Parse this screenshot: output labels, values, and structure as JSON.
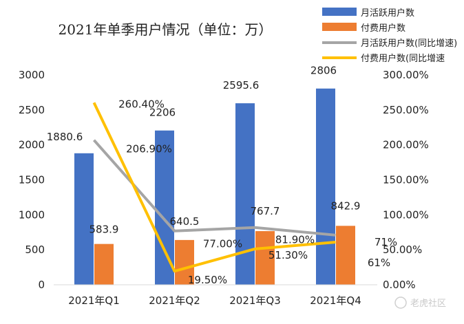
{
  "chart_data": {
    "type": "bar",
    "title": "2021年单季用户情况（单位：万）",
    "categories": [
      "2021年Q1",
      "2021年Q2",
      "2021年Q3",
      "2021年Q4"
    ],
    "series": [
      {
        "name": "月活跃用户数",
        "type": "bar",
        "axis": "left",
        "color": "#4472C4",
        "values": [
          1880.6,
          2206,
          2595.6,
          2806
        ],
        "labels": [
          "1880.6",
          "2206",
          "2595.6",
          "2806"
        ]
      },
      {
        "name": "付费用户数",
        "type": "bar",
        "axis": "left",
        "color": "#ED7D31",
        "values": [
          583.9,
          640.5,
          767.7,
          842.9
        ],
        "labels": [
          "583.9",
          "640.5",
          "767.7",
          "842.9"
        ]
      },
      {
        "name": "月活跃用户数(同比增速)",
        "type": "line",
        "axis": "right",
        "color": "#A5A5A5",
        "values": [
          206.9,
          77.0,
          81.9,
          71.0
        ],
        "labels": [
          "206.90%",
          "77.00%",
          "81.90%",
          "71%"
        ]
      },
      {
        "name": "付费用户数(同比增速",
        "type": "line",
        "axis": "right",
        "color": "#FFC000",
        "values": [
          260.4,
          19.5,
          51.3,
          61.0
        ],
        "labels": [
          "260.40%",
          "19.50%",
          "51.30%",
          "61%"
        ]
      }
    ],
    "y_left": {
      "min": 0,
      "max": 3000,
      "ticks": [
        "0",
        "500",
        "1000",
        "1500",
        "2000",
        "2500",
        "3000"
      ]
    },
    "y_right": {
      "min": 0,
      "max": 300,
      "ticks": [
        "0.00%",
        "50.00%",
        "100.00%",
        "150.00%",
        "200.00%",
        "250.00%",
        "300.00%"
      ]
    },
    "grid": false,
    "legend_position": "top-right"
  },
  "watermark": "老虎社区"
}
